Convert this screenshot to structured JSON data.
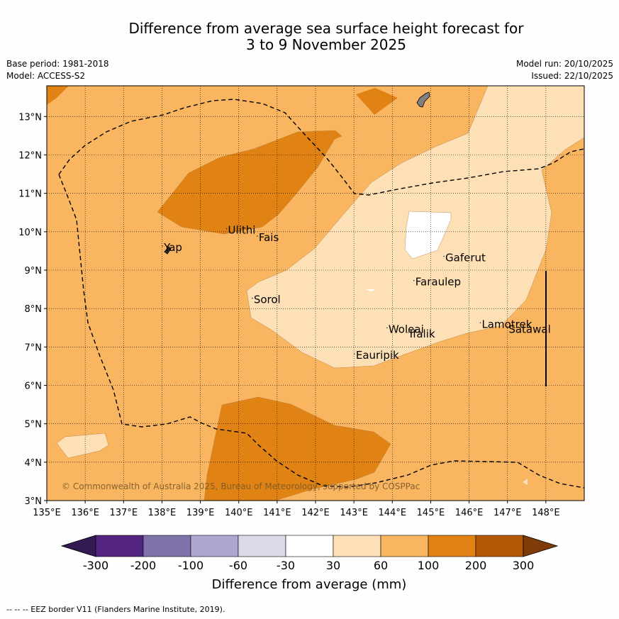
{
  "title": {
    "line1": "Difference from average sea surface height forecast for",
    "line2": "3 to 9 November 2025"
  },
  "meta": {
    "base_period": "Base period: 1981-2018",
    "model": "Model: ACCESS-S2",
    "model_run": "Model run: 20/10/2025",
    "issued": "Issued: 22/10/2025"
  },
  "map": {
    "lon_range": [
      135,
      149
    ],
    "lat_range": [
      3,
      13.8
    ],
    "lon_ticks": [
      "135°E",
      "136°E",
      "137°E",
      "138°E",
      "139°E",
      "140°E",
      "141°E",
      "142°E",
      "143°E",
      "144°E",
      "145°E",
      "146°E",
      "147°E",
      "148°E"
    ],
    "lat_ticks": [
      "3°N",
      "4°N",
      "5°N",
      "6°N",
      "7°N",
      "8°N",
      "9°N",
      "10°N",
      "11°N",
      "12°N",
      "13°N"
    ],
    "places": [
      {
        "name": "Yap",
        "lon": 138.05,
        "lat": 9.5
      },
      {
        "name": "Ulithi",
        "lon": 139.72,
        "lat": 9.95
      },
      {
        "name": "Fais",
        "lon": 140.52,
        "lat": 9.76
      },
      {
        "name": "Gaferut",
        "lon": 145.38,
        "lat": 9.23
      },
      {
        "name": "Faraulep",
        "lon": 144.6,
        "lat": 8.6
      },
      {
        "name": "Sorol",
        "lon": 140.39,
        "lat": 8.14
      },
      {
        "name": "Woleai",
        "lon": 143.9,
        "lat": 7.37
      },
      {
        "name": "Ifalik",
        "lon": 144.45,
        "lat": 7.25
      },
      {
        "name": "Lamotrek",
        "lon": 146.33,
        "lat": 7.5
      },
      {
        "name": "Satawal",
        "lon": 147.03,
        "lat": 7.37
      },
      {
        "name": "Eauripik",
        "lon": 143.05,
        "lat": 6.69
      }
    ],
    "copyright": "© Commonwealth of Australia 2025, Bureau of Meteorology, supported by COSPPac"
  },
  "legend": {
    "ticks": [
      "-300",
      "-200",
      "-100",
      "-60",
      "-30",
      "30",
      "60",
      "100",
      "200",
      "300"
    ],
    "colors": [
      "#331a52",
      "#52237f",
      "#7f72ab",
      "#aea7d0",
      "#dadaeb",
      "#ffffff",
      "#fee0b6",
      "#f9b560",
      "#e08214",
      "#b35806",
      "#7f3b08"
    ],
    "label": "Difference from average (mm)"
  },
  "colors": {
    "c30_60": "#fee0b6",
    "c60_100": "#f9b560",
    "c100_200": "#e08214",
    "white": "#ffffff",
    "land": "#808080"
  },
  "footnote": "--  --  -- EEZ border V11 (Flanders Marine Institute, 2019)."
}
